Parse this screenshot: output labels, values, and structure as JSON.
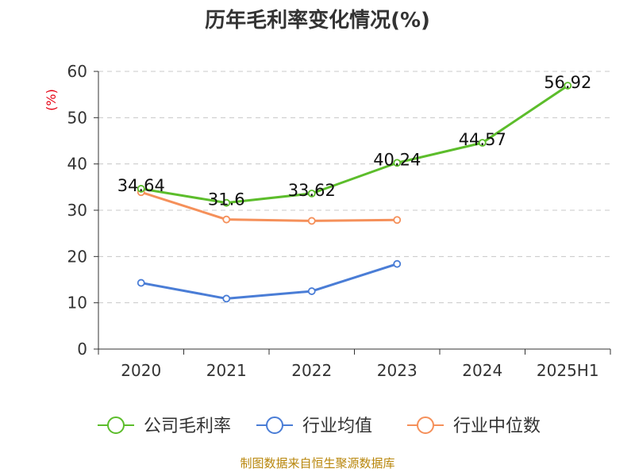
{
  "title": "历年毛利率变化情况(%)",
  "source": "制图数据来自恒生聚源数据库",
  "chart_data": {
    "type": "line",
    "title": "历年毛利率变化情况(%)",
    "ylabel": "(%)",
    "xlabel": "",
    "categories": [
      "2020",
      "2021",
      "2022",
      "2023",
      "2024",
      "2025H1"
    ],
    "ylim": [
      0,
      60
    ],
    "yticks": [
      0,
      10,
      20,
      30,
      40,
      50,
      60
    ],
    "grid": true,
    "legend_position": "bottom",
    "series": [
      {
        "name": "公司毛利率",
        "color": "#5cbd2b",
        "values": [
          34.64,
          31.6,
          33.62,
          40.24,
          44.57,
          56.92
        ],
        "labels": [
          "34.64",
          "31.6",
          "33.62",
          "40.24",
          "44.57",
          "56.92"
        ]
      },
      {
        "name": "行业均值",
        "color": "#4a7dd6",
        "values": [
          14.3,
          10.9,
          12.5,
          18.4,
          null,
          null
        ]
      },
      {
        "name": "行业中位数",
        "color": "#f5905a",
        "values": [
          33.9,
          28.0,
          27.7,
          27.9,
          null,
          null
        ]
      }
    ]
  }
}
